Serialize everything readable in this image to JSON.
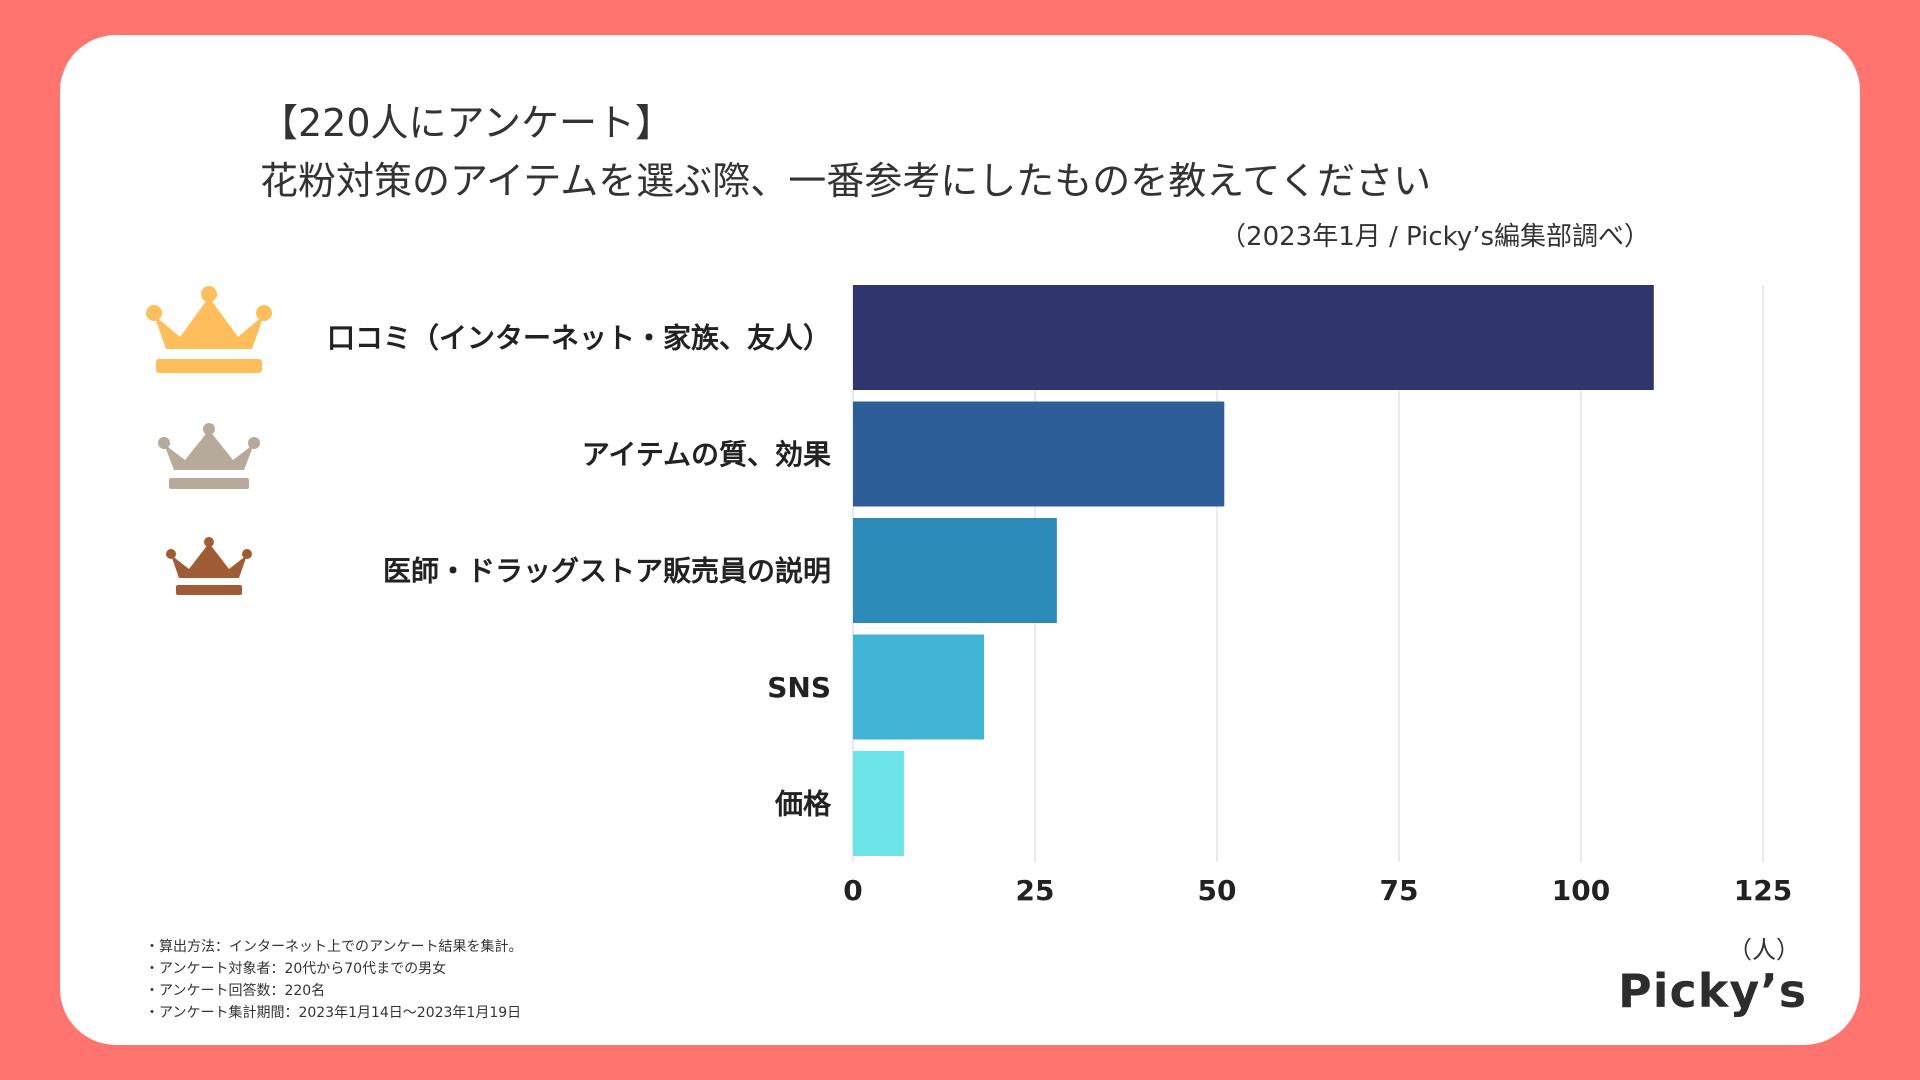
{
  "title_line1": "【220人にアンケート】",
  "title_line2": "花粉対策のアイテムを選ぶ際、一番参考にしたものを教えてください",
  "subtitle": "（2023年1月 / Picky’s編集部調べ）",
  "unit_label": "（人）",
  "brand": "Picky’s",
  "notes": [
    "・算出方法：インターネット上でのアンケート結果を集計。",
    "・アンケート対象者：20代から70代までの男女",
    "・アンケート回答数：220名",
    "・アンケート集計期間：2023年1月14日〜2023年1月19日"
  ],
  "crowns": [
    {
      "name": "gold-crown-icon",
      "color": "#FFBE5C"
    },
    {
      "name": "silver-crown-icon",
      "color": "#B6AA9A"
    },
    {
      "name": "bronze-crown-icon",
      "color": "#A05C34"
    }
  ],
  "chart_data": {
    "type": "bar",
    "orientation": "horizontal",
    "categories": [
      "口コミ（インターネット・家族、友人）",
      "アイテムの質、効果",
      "医師・ドラッグストア販売員の説明",
      "SNS",
      "価格"
    ],
    "values": [
      110,
      51,
      28,
      18,
      7
    ],
    "colors": [
      "#31356E",
      "#2E5E98",
      "#2C8AB8",
      "#41B5D5",
      "#6DE5E8"
    ],
    "xlim": [
      0,
      125
    ],
    "xticks": [
      0,
      25,
      50,
      75,
      100,
      125
    ],
    "grid": true
  }
}
